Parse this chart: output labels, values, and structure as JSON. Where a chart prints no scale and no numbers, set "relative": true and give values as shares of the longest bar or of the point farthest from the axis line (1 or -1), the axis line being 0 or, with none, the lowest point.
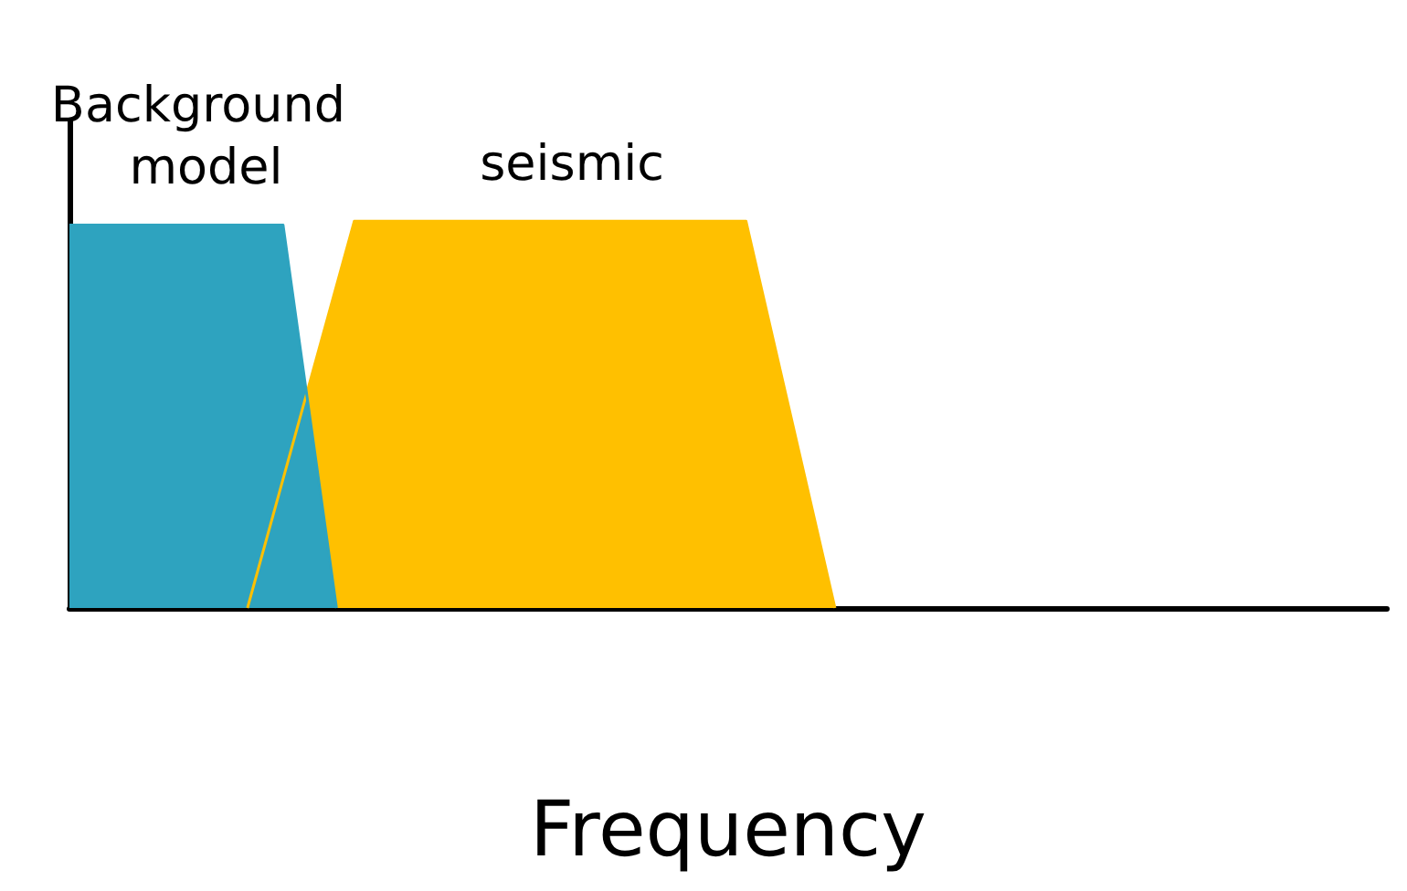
{
  "chart_data": {
    "type": "area",
    "relative": true,
    "xlabel": "Frequency",
    "grid": false,
    "legend": false,
    "categories": [
      null,
      null,
      null,
      null,
      null,
      null,
      null,
      null,
      null,
      null,
      null,
      null,
      null,
      null,
      null,
      null,
      null,
      null,
      null,
      null,
      null,
      null,
      null,
      null,
      null,
      null,
      null,
      null,
      null,
      null,
      null,
      null,
      null,
      null,
      null,
      null,
      null,
      null,
      null,
      null,
      null,
      null,
      null,
      null,
      null,
      null,
      null,
      null,
      null,
      null,
      null,
      null,
      null,
      null,
      null,
      null,
      null,
      null,
      null,
      null,
      null,
      null,
      null,
      null,
      null,
      null,
      null,
      null,
      null,
      null,
      null,
      null,
      null,
      null,
      null
    ],
    "series": [
      {
        "name": "seismic",
        "color": "#ffc000",
        "values": [
          null,
          null,
          null,
          null,
          null,
          null,
          null,
          null,
          null,
          null,
          0,
          null,
          null,
          null,
          null,
          null,
          1,
          null,
          null,
          null,
          null,
          null,
          null,
          null,
          null,
          null,
          null,
          null,
          null,
          null,
          null,
          null,
          null,
          null,
          null,
          null,
          null,
          null,
          1,
          null,
          null,
          null,
          null,
          0,
          null,
          null,
          null,
          null,
          null,
          null,
          null,
          null,
          null,
          null,
          null,
          null,
          null,
          null,
          null,
          null,
          null,
          null,
          null,
          null,
          null,
          null,
          null,
          null,
          null,
          null,
          null,
          null,
          null,
          null,
          null
        ]
      },
      {
        "name": "Background model",
        "color": "#2ea3bf",
        "values": [
          0.99,
          null,
          null,
          null,
          null,
          null,
          null,
          null,
          null,
          null,
          null,
          null,
          0.99,
          null,
          null,
          0,
          null,
          null,
          null,
          null,
          null,
          null,
          null,
          null,
          null,
          null,
          null,
          null,
          null,
          null,
          null,
          null,
          null,
          null,
          null,
          null,
          null,
          null,
          null,
          null,
          null,
          null,
          null,
          null,
          null,
          null,
          null,
          null,
          null,
          null,
          null,
          null,
          null,
          null,
          null,
          null,
          null,
          null,
          null,
          null,
          null,
          null,
          null,
          null,
          null,
          null,
          null,
          null,
          null,
          null,
          null,
          null,
          null,
          null,
          null
        ]
      }
    ]
  }
}
